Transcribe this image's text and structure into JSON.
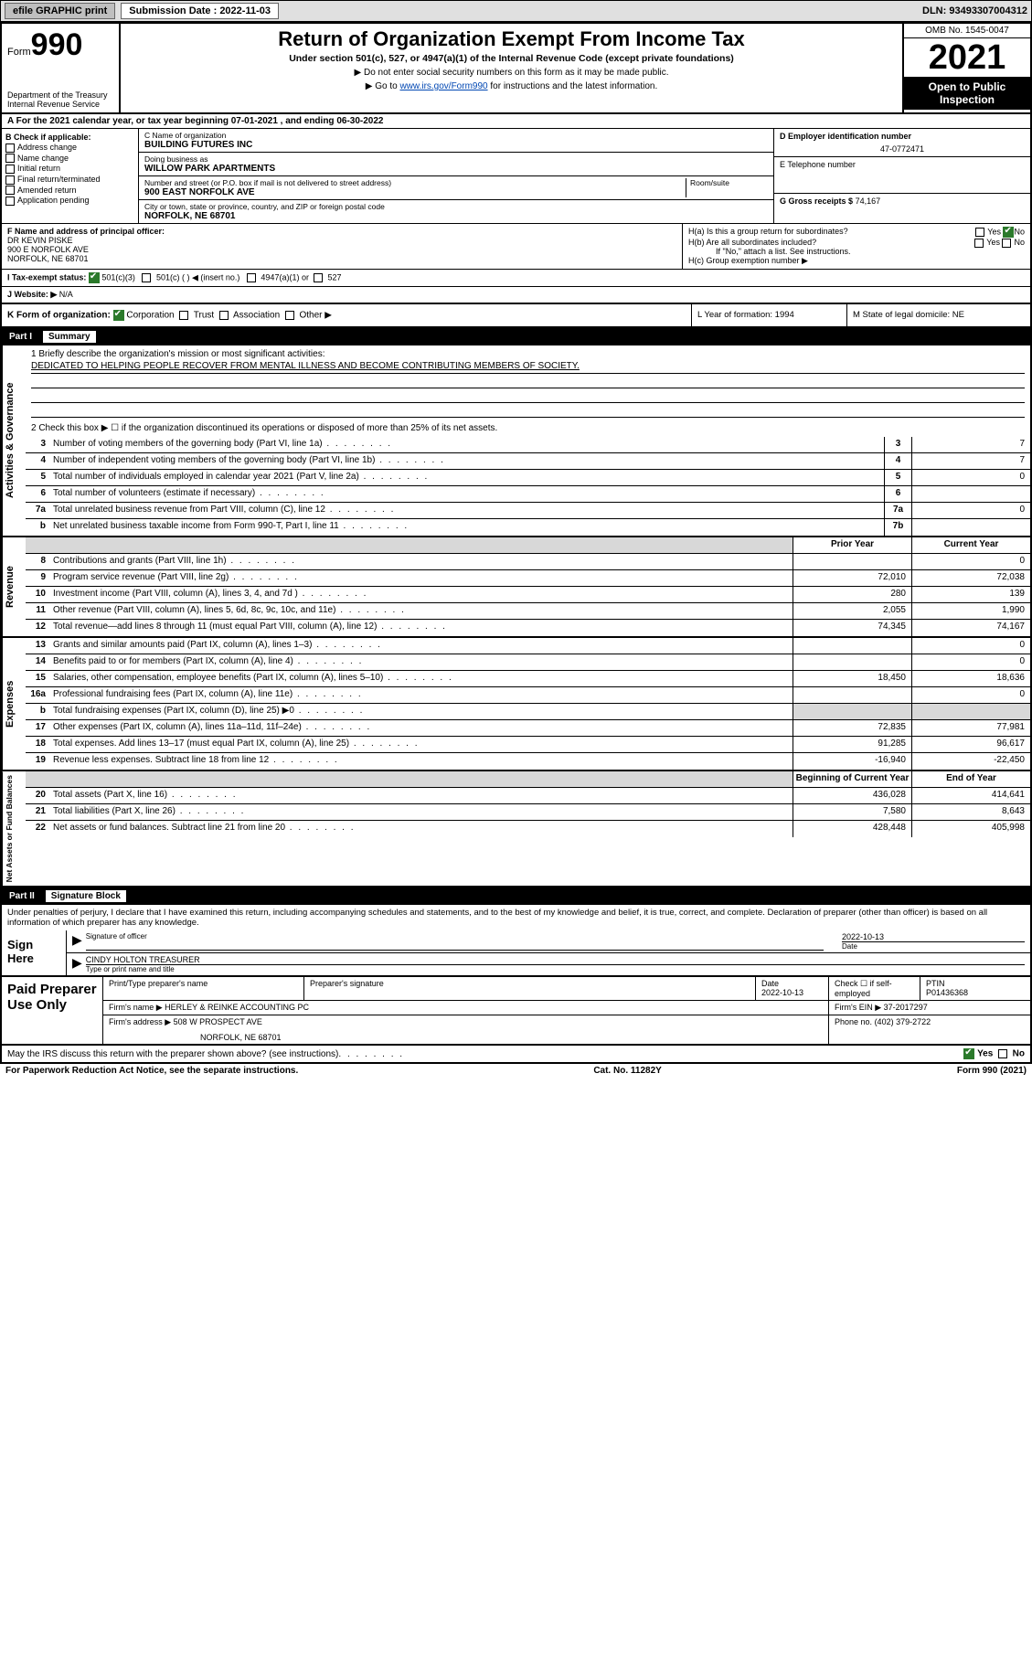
{
  "topbar": {
    "efile": "efile GRAPHIC print",
    "submission_label": "Submission Date : 2022-11-03",
    "dln": "DLN: 93493307004312"
  },
  "header": {
    "form_prefix": "Form",
    "form_num": "990",
    "dept": "Department of the Treasury\nInternal Revenue Service",
    "title": "Return of Organization Exempt From Income Tax",
    "subtitle": "Under section 501(c), 527, or 4947(a)(1) of the Internal Revenue Code (except private foundations)",
    "note1": "▶ Do not enter social security numbers on this form as it may be made public.",
    "note2_pre": "▶ Go to ",
    "note2_link": "www.irs.gov/Form990",
    "note2_post": " for instructions and the latest information.",
    "omb": "OMB No. 1545-0047",
    "year": "2021",
    "open": "Open to Public Inspection"
  },
  "row_a": "A For the 2021 calendar year, or tax year beginning 07-01-2021   , and ending 06-30-2022",
  "block_b": {
    "hdr": "B Check if applicable:",
    "opts": [
      "Address change",
      "Name change",
      "Initial return",
      "Final return/terminated",
      "Amended return",
      "Application pending"
    ]
  },
  "block_c": {
    "name_lbl": "C Name of organization",
    "name_val": "BUILDING FUTURES INC",
    "dba_lbl": "Doing business as",
    "dba_val": "WILLOW PARK APARTMENTS",
    "street_lbl": "Number and street (or P.O. box if mail is not delivered to street address)",
    "room_lbl": "Room/suite",
    "street_val": "900 EAST NORFOLK AVE",
    "city_lbl": "City or town, state or province, country, and ZIP or foreign postal code",
    "city_val": "NORFOLK, NE  68701"
  },
  "block_d": {
    "lbl": "D Employer identification number",
    "val": "47-0772471"
  },
  "block_e": {
    "lbl": "E Telephone number",
    "val": ""
  },
  "block_g": {
    "lbl": "G Gross receipts $",
    "val": "74,167"
  },
  "block_f": {
    "lbl": "F  Name and address of principal officer:",
    "line1": "DR KEVIN PISKE",
    "line2": "900 E NORFOLK AVE",
    "line3": "NORFOLK, NE  68701"
  },
  "block_h": {
    "ha": "H(a)  Is this a group return for subordinates?",
    "hb": "H(b)  Are all subordinates included?",
    "hb_note": "If \"No,\" attach a list. See instructions.",
    "hc": "H(c)  Group exemption number ▶"
  },
  "row_i": {
    "lbl": "I   Tax-exempt status:",
    "opts": [
      "501(c)(3)",
      "501(c) (  ) ◀ (insert no.)",
      "4947(a)(1) or",
      "527"
    ]
  },
  "row_j": {
    "lbl": "J   Website: ▶",
    "val": "N/A"
  },
  "row_k": {
    "lbl": "K Form of organization:",
    "opts": [
      "Corporation",
      "Trust",
      "Association",
      "Other ▶"
    ],
    "l": "L Year of formation: 1994",
    "m": "M State of legal domicile: NE"
  },
  "part1": {
    "num": "Part I",
    "title": "Summary"
  },
  "mission": {
    "q1": "1   Briefly describe the organization's mission or most significant activities:",
    "text": "DEDICATED TO HELPING PEOPLE RECOVER FROM MENTAL ILLNESS AND BECOME CONTRIBUTING MEMBERS OF SOCIETY.",
    "q2": "2   Check this box ▶ ☐  if the organization discontinued its operations or disposed of more than 25% of its net assets."
  },
  "sections": {
    "gov": {
      "label": "Activities & Governance",
      "rows": [
        {
          "n": "3",
          "d": "Number of voting members of the governing body (Part VI, line 1a)",
          "box": "3",
          "v": "7"
        },
        {
          "n": "4",
          "d": "Number of independent voting members of the governing body (Part VI, line 1b)",
          "box": "4",
          "v": "7"
        },
        {
          "n": "5",
          "d": "Total number of individuals employed in calendar year 2021 (Part V, line 2a)",
          "box": "5",
          "v": "0"
        },
        {
          "n": "6",
          "d": "Total number of volunteers (estimate if necessary)",
          "box": "6",
          "v": ""
        },
        {
          "n": "7a",
          "d": "Total unrelated business revenue from Part VIII, column (C), line 12",
          "box": "7a",
          "v": "0"
        },
        {
          "n": "b",
          "d": "Net unrelated business taxable income from Form 990-T, Part I, line 11",
          "box": "7b",
          "v": ""
        }
      ]
    },
    "rev": {
      "label": "Revenue",
      "hdr_prior": "Prior Year",
      "hdr_curr": "Current Year",
      "rows": [
        {
          "n": "8",
          "d": "Contributions and grants (Part VIII, line 1h)",
          "p": "",
          "c": "0"
        },
        {
          "n": "9",
          "d": "Program service revenue (Part VIII, line 2g)",
          "p": "72,010",
          "c": "72,038"
        },
        {
          "n": "10",
          "d": "Investment income (Part VIII, column (A), lines 3, 4, and 7d )",
          "p": "280",
          "c": "139"
        },
        {
          "n": "11",
          "d": "Other revenue (Part VIII, column (A), lines 5, 6d, 8c, 9c, 10c, and 11e)",
          "p": "2,055",
          "c": "1,990"
        },
        {
          "n": "12",
          "d": "Total revenue—add lines 8 through 11 (must equal Part VIII, column (A), line 12)",
          "p": "74,345",
          "c": "74,167"
        }
      ]
    },
    "exp": {
      "label": "Expenses",
      "rows": [
        {
          "n": "13",
          "d": "Grants and similar amounts paid (Part IX, column (A), lines 1–3)",
          "p": "",
          "c": "0"
        },
        {
          "n": "14",
          "d": "Benefits paid to or for members (Part IX, column (A), line 4)",
          "p": "",
          "c": "0"
        },
        {
          "n": "15",
          "d": "Salaries, other compensation, employee benefits (Part IX, column (A), lines 5–10)",
          "p": "18,450",
          "c": "18,636"
        },
        {
          "n": "16a",
          "d": "Professional fundraising fees (Part IX, column (A), line 11e)",
          "p": "",
          "c": "0"
        },
        {
          "n": "b",
          "d": "Total fundraising expenses (Part IX, column (D), line 25) ▶0",
          "p": "GRAY",
          "c": "GRAY"
        },
        {
          "n": "17",
          "d": "Other expenses (Part IX, column (A), lines 11a–11d, 11f–24e)",
          "p": "72,835",
          "c": "77,981"
        },
        {
          "n": "18",
          "d": "Total expenses. Add lines 13–17 (must equal Part IX, column (A), line 25)",
          "p": "91,285",
          "c": "96,617"
        },
        {
          "n": "19",
          "d": "Revenue less expenses. Subtract line 18 from line 12",
          "p": "-16,940",
          "c": "-22,450"
        }
      ]
    },
    "net": {
      "label": "Net Assets or Fund Balances",
      "hdr_prior": "Beginning of Current Year",
      "hdr_curr": "End of Year",
      "rows": [
        {
          "n": "20",
          "d": "Total assets (Part X, line 16)",
          "p": "436,028",
          "c": "414,641"
        },
        {
          "n": "21",
          "d": "Total liabilities (Part X, line 26)",
          "p": "7,580",
          "c": "8,643"
        },
        {
          "n": "22",
          "d": "Net assets or fund balances. Subtract line 21 from line 20",
          "p": "428,448",
          "c": "405,998"
        }
      ]
    }
  },
  "part2": {
    "num": "Part II",
    "title": "Signature Block"
  },
  "sig": {
    "decl": "Under penalties of perjury, I declare that I have examined this return, including accompanying schedules and statements, and to the best of my knowledge and belief, it is true, correct, and complete. Declaration of preparer (other than officer) is based on all information of which preparer has any knowledge.",
    "sign_here": "Sign Here",
    "sig_lbl": "Signature of officer",
    "date_lbl": "Date",
    "date_val": "2022-10-13",
    "name_lbl": "Type or print name and title",
    "name_val": "CINDY HOLTON  TREASURER"
  },
  "paid": {
    "title": "Paid Preparer Use Only",
    "h1": "Print/Type preparer's name",
    "h2": "Preparer's signature",
    "h3": "Date",
    "h3v": "2022-10-13",
    "h4": "Check ☐ if self-employed",
    "h5": "PTIN",
    "h5v": "P01436368",
    "firm_lbl": "Firm's name    ▶",
    "firm_val": "HERLEY & REINKE ACCOUNTING PC",
    "ein_lbl": "Firm's EIN ▶",
    "ein_val": "37-2017297",
    "addr_lbl": "Firm's address ▶",
    "addr_val1": "508 W PROSPECT AVE",
    "addr_val2": "NORFOLK, NE  68701",
    "phone_lbl": "Phone no.",
    "phone_val": "(402) 379-2722"
  },
  "footer": {
    "q": "May the IRS discuss this return with the preparer shown above? (see instructions)",
    "yes": "Yes",
    "no": "No",
    "pra": "For Paperwork Reduction Act Notice, see the separate instructions.",
    "cat": "Cat. No. 11282Y",
    "form": "Form 990 (2021)"
  }
}
